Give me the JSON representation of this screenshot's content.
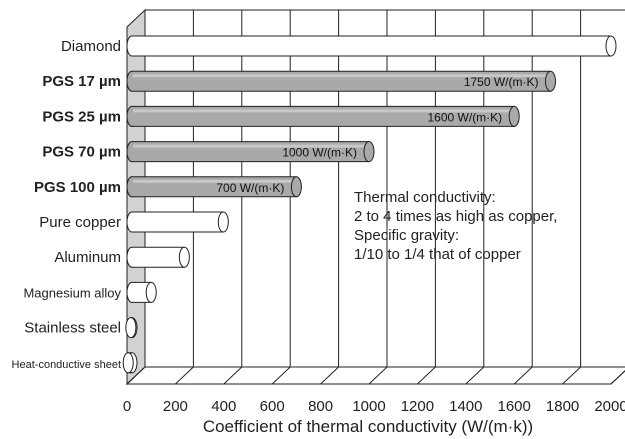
{
  "chart_data": {
    "type": "bar",
    "orientation": "horizontal",
    "categories": [
      "Diamond",
      "PGS 17 µm",
      "PGS 25 µm",
      "PGS 70 µm",
      "PGS 100 µm",
      "Pure copper",
      "Aluminum",
      "Magnesium alloy",
      "Stainless steel",
      "Heat-conductive sheet"
    ],
    "values": [
      2000,
      1750,
      1600,
      1000,
      700,
      398,
      237,
      100,
      16,
      5
    ],
    "highlight": [
      false,
      true,
      true,
      true,
      true,
      false,
      false,
      false,
      false,
      false
    ],
    "data_labels": [
      "",
      "1750 W/(m·K)",
      "1600 W/(m·K)",
      "1000 W/(m·K)",
      "700 W/(m·K)",
      "",
      "",
      "",
      "",
      ""
    ],
    "xlabel": "Coefficient of thermal conductivity (W/(m·k))",
    "ylabel": "",
    "xlim": [
      0,
      2000
    ],
    "xticks": [
      0,
      200,
      400,
      600,
      800,
      1000,
      1200,
      1400,
      1600,
      1800,
      2000
    ],
    "grid": true,
    "style": "3d-cylinders",
    "colors": {
      "highlight": "#a9a9a9",
      "normal": "#ffffff",
      "wall": "#d2d2d2",
      "line": "#222222"
    },
    "annotation": [
      "Thermal conductivity:",
      "2 to 4 times as high as copper,",
      "Specific gravity:",
      "1/10 to 1/4 that of copper"
    ]
  }
}
